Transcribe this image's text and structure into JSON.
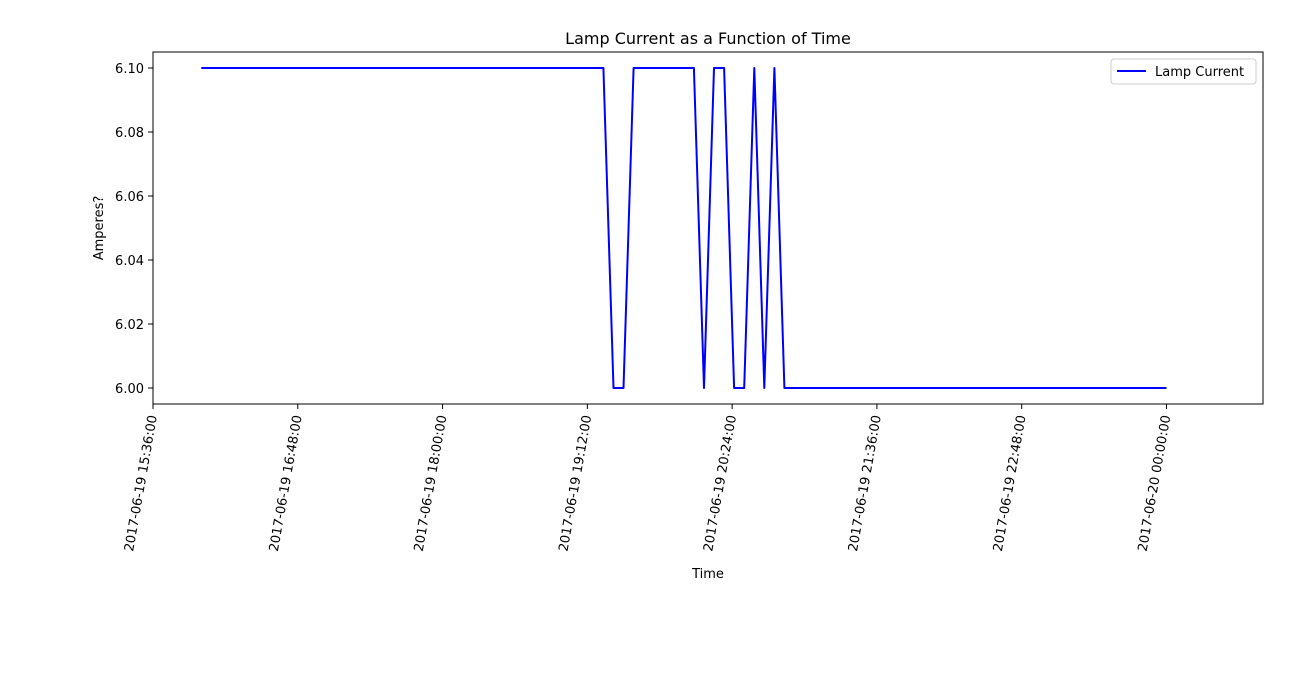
{
  "chart_data": {
    "type": "line",
    "title": "Lamp Current as a Function of Time",
    "xlabel": "Time",
    "ylabel": "Amperes?",
    "x_axis_type": "datetime",
    "xlim": [
      "2017-06-19 15:36:00",
      "2017-06-20 00:48:00"
    ],
    "ylim": [
      5.995,
      6.105
    ],
    "x_ticks": [
      "2017-06-19 15:36:00",
      "2017-06-19 16:48:00",
      "2017-06-19 18:00:00",
      "2017-06-19 19:12:00",
      "2017-06-19 20:24:00",
      "2017-06-19 21:36:00",
      "2017-06-19 22:48:00",
      "2017-06-20 00:00:00"
    ],
    "y_ticks": [
      6.0,
      6.02,
      6.04,
      6.06,
      6.08,
      6.1
    ],
    "y_tick_labels": [
      "6.00",
      "6.02",
      "6.04",
      "6.06",
      "6.08",
      "6.10"
    ],
    "x_tick_rotation_deg": 80,
    "grid": false,
    "legend_position": "top-right",
    "series": [
      {
        "name": "Lamp Current",
        "color": "#0000ff",
        "points": [
          {
            "x": "2017-06-19 16:00:00",
            "y": 6.1
          },
          {
            "x": "2017-06-19 19:20:00",
            "y": 6.1
          },
          {
            "x": "2017-06-19 19:25:00",
            "y": 6.0
          },
          {
            "x": "2017-06-19 19:30:00",
            "y": 6.0
          },
          {
            "x": "2017-06-19 19:35:00",
            "y": 6.1
          },
          {
            "x": "2017-06-19 20:05:00",
            "y": 6.1
          },
          {
            "x": "2017-06-19 20:10:00",
            "y": 6.0
          },
          {
            "x": "2017-06-19 20:15:00",
            "y": 6.1
          },
          {
            "x": "2017-06-19 20:20:00",
            "y": 6.1
          },
          {
            "x": "2017-06-19 20:25:00",
            "y": 6.0
          },
          {
            "x": "2017-06-19 20:30:00",
            "y": 6.0
          },
          {
            "x": "2017-06-19 20:35:00",
            "y": 6.1
          },
          {
            "x": "2017-06-19 20:40:00",
            "y": 6.0
          },
          {
            "x": "2017-06-19 20:45:00",
            "y": 6.1
          },
          {
            "x": "2017-06-19 20:50:00",
            "y": 6.0
          },
          {
            "x": "2017-06-20 00:00:00",
            "y": 6.0
          }
        ]
      }
    ]
  }
}
